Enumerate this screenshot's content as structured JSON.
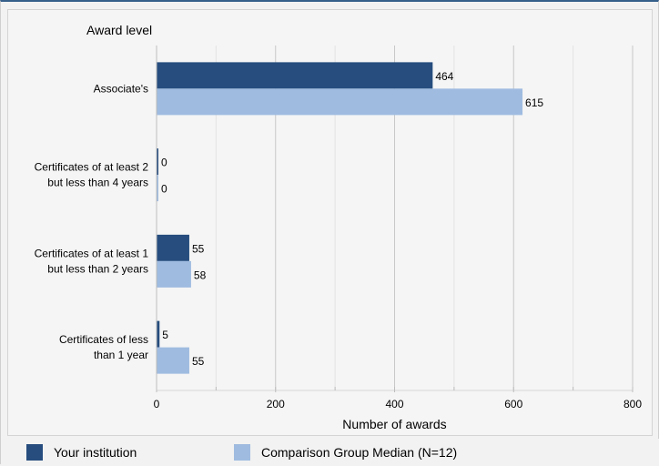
{
  "chart_data": {
    "type": "bar",
    "orientation": "horizontal",
    "category_axis_title": "Award level",
    "xlabel": "Number of awards",
    "categories": [
      [
        "Associate's"
      ],
      [
        "Certificates of at least 2",
        "but less than 4 years"
      ],
      [
        "Certificates of at least 1",
        "but  less than 2 years"
      ],
      [
        "Certificates of less",
        "than 1 year"
      ]
    ],
    "series": [
      {
        "name": "Your institution",
        "values": [
          464,
          0,
          55,
          5
        ],
        "color": "#264d7e"
      },
      {
        "name": "Comparison Group Median (N=12)",
        "values": [
          615,
          0,
          58,
          55
        ],
        "color": "#9fbbe0"
      }
    ],
    "xlim": [
      0,
      800
    ],
    "xticks": [
      0,
      200,
      400,
      600,
      800
    ],
    "grid": true,
    "legend_position": "bottom"
  }
}
